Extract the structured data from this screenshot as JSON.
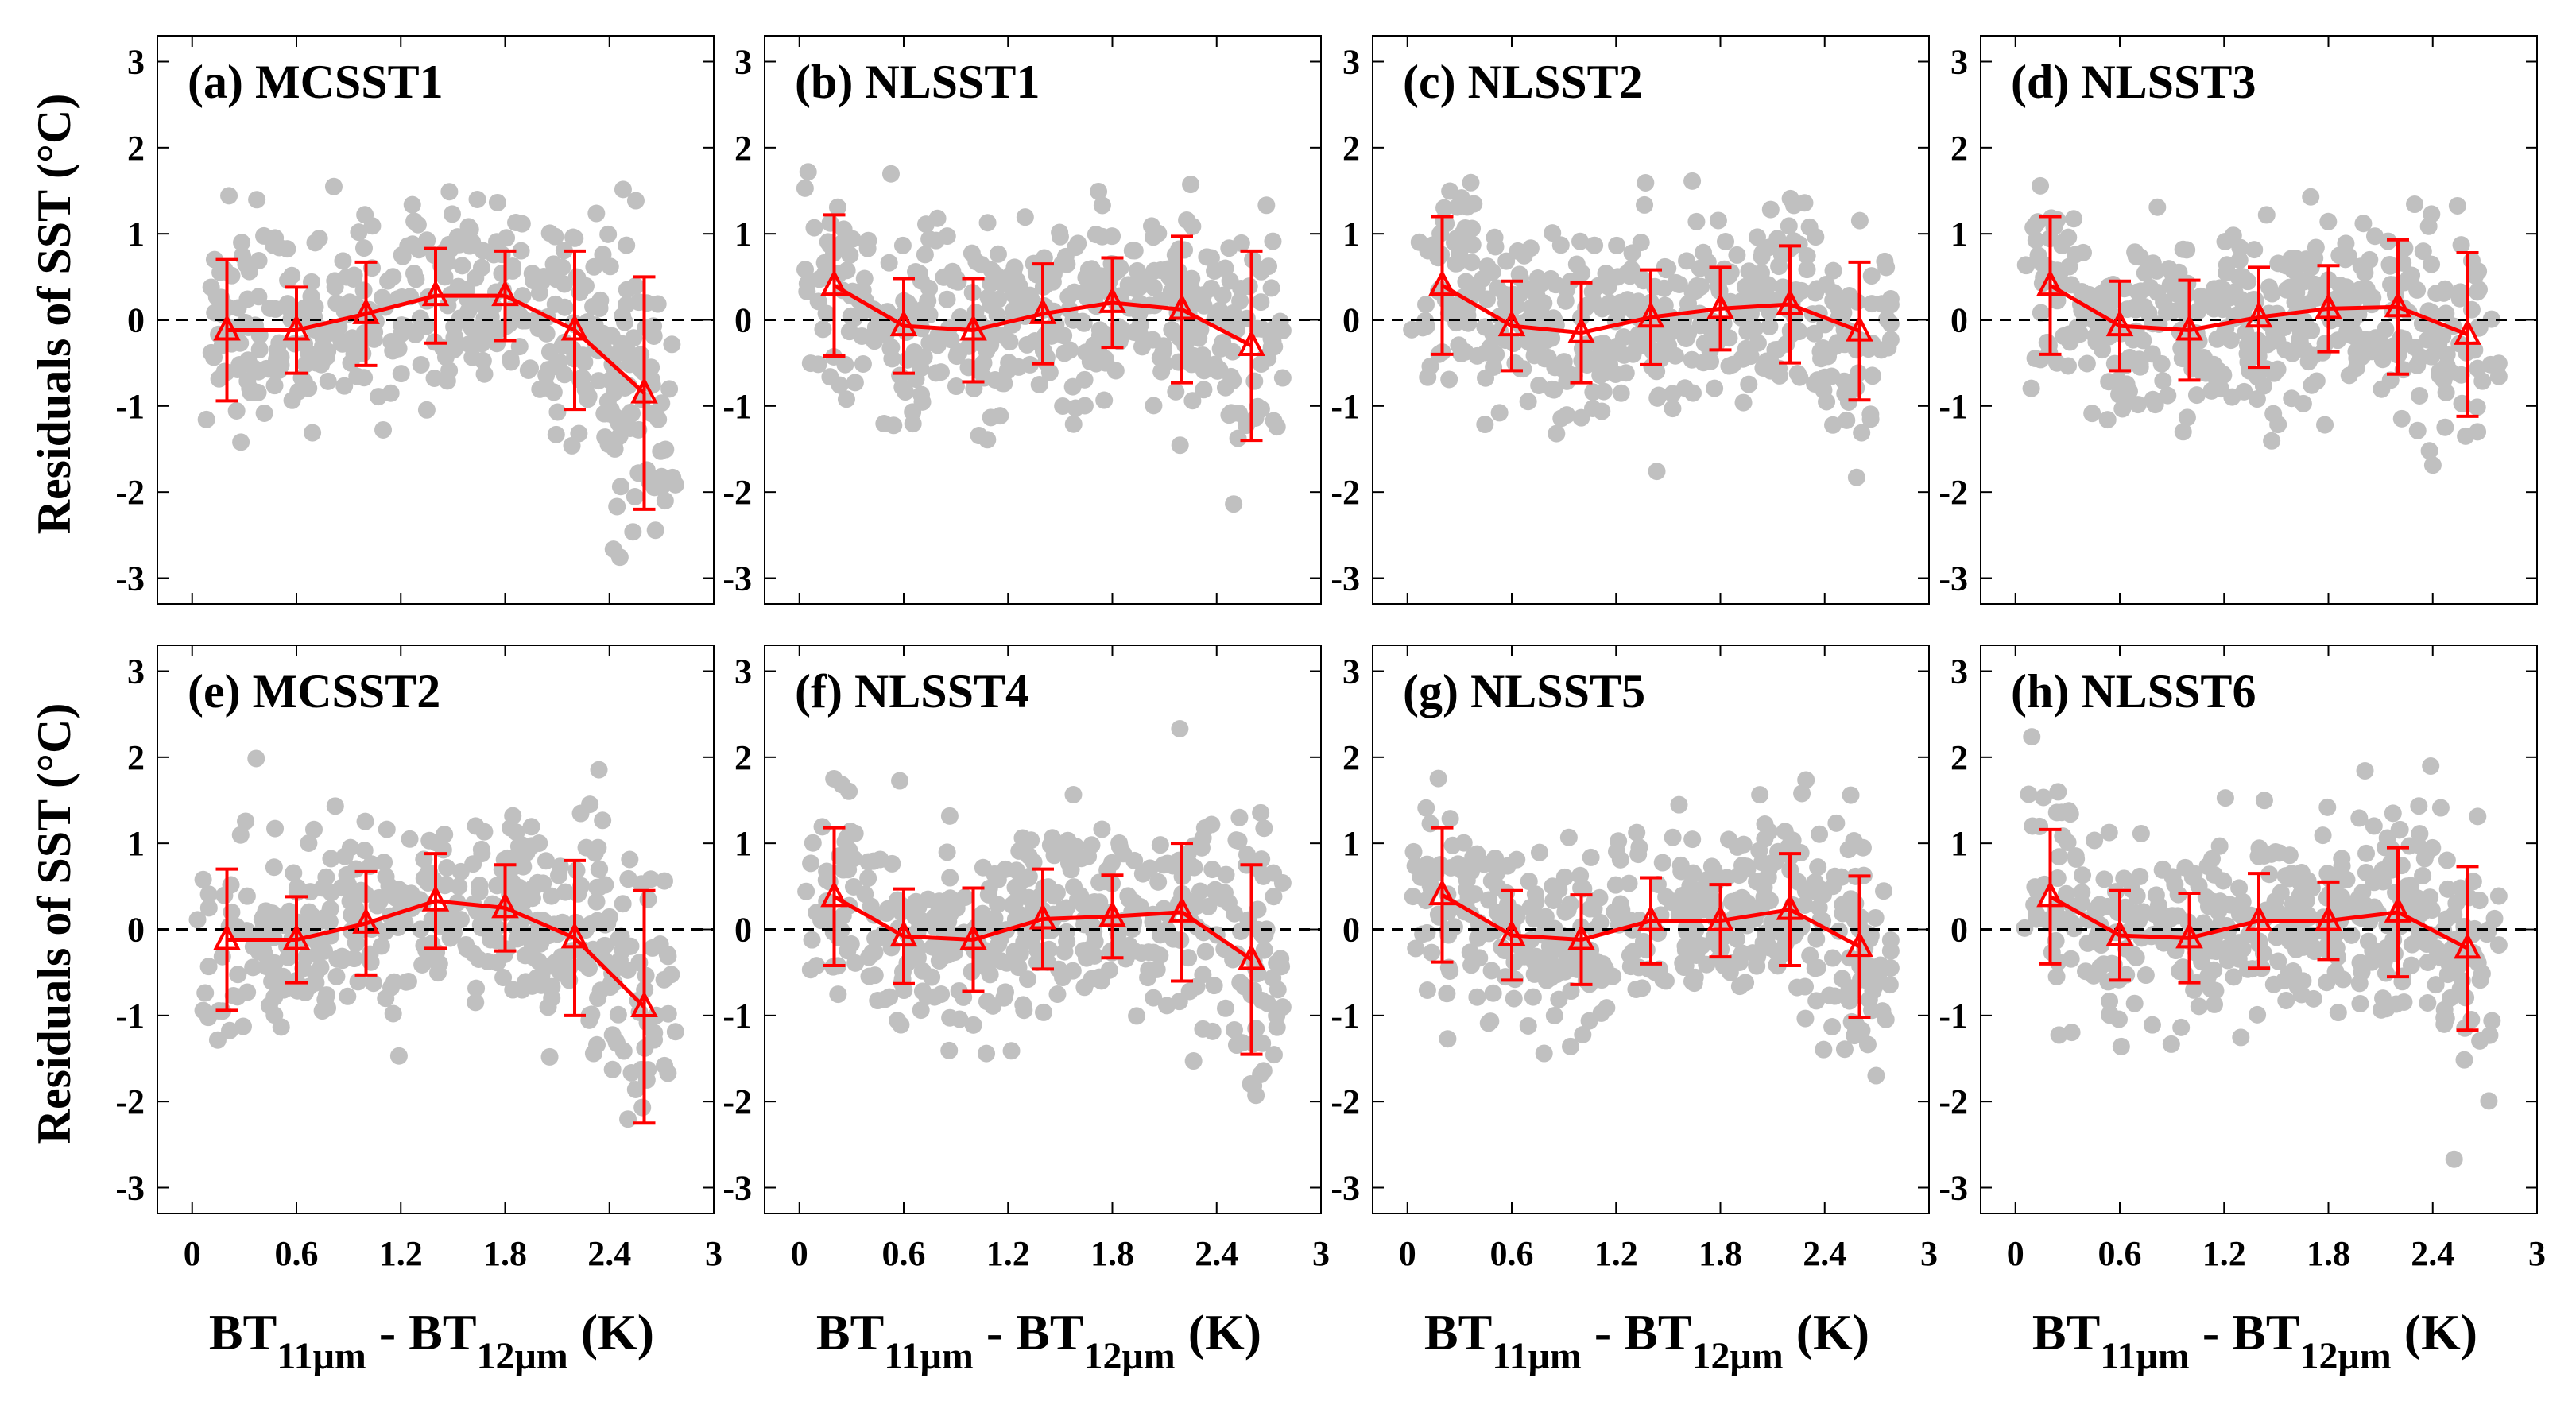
{
  "figure": {
    "ylabel": "Residuals of SST (°C)",
    "xlabel": {
      "t1": "BT",
      "s1": "11μm",
      "t2": " - BT",
      "s2": "12μm",
      "t3": " (K)"
    },
    "colors": {
      "scatter": "#c0c0c0",
      "mean": "#ff0000",
      "zero_line": "#000000"
    }
  },
  "chart_data": [
    {
      "type": "scatter",
      "title": "(a) MCSST1",
      "xlim": [
        -0.2,
        3
      ],
      "ylim": [
        -3.3,
        3.3
      ],
      "xticks": [
        "0",
        "0.6",
        "1.2",
        "1.8",
        "2.4",
        "3"
      ],
      "yticks": [
        "3",
        "2",
        "1",
        "0",
        "-1",
        "-2",
        "-3"
      ],
      "mean_x": [
        0.2,
        0.6,
        1.0,
        1.4,
        1.8,
        2.2,
        2.6
      ],
      "mean_y": [
        -0.12,
        -0.12,
        0.07,
        0.28,
        0.28,
        -0.12,
        -0.85
      ],
      "err": [
        0.82,
        0.5,
        0.6,
        0.55,
        0.52,
        0.92,
        1.35
      ]
    },
    {
      "type": "scatter",
      "title": "(b) NLSST1",
      "xlim": [
        -0.2,
        3
      ],
      "ylim": [
        -3.3,
        3.3
      ],
      "xticks": [
        "0",
        "0.6",
        "1.2",
        "1.8",
        "2.4",
        "3"
      ],
      "yticks": [
        "3",
        "2",
        "1",
        "0",
        "-1",
        "-2",
        "-3"
      ],
      "mean_x": [
        0.2,
        0.6,
        1.0,
        1.4,
        1.8,
        2.2,
        2.6
      ],
      "mean_y": [
        0.4,
        -0.07,
        -0.12,
        0.07,
        0.2,
        0.12,
        -0.3
      ],
      "err": [
        0.82,
        0.55,
        0.6,
        0.58,
        0.52,
        0.85,
        1.1
      ]
    },
    {
      "type": "scatter",
      "title": "(c) NLSST2",
      "xlim": [
        -0.2,
        3
      ],
      "ylim": [
        -3.3,
        3.3
      ],
      "xticks": [
        "0",
        "0.6",
        "1.2",
        "1.8",
        "2.4",
        "3"
      ],
      "yticks": [
        "3",
        "2",
        "1",
        "0",
        "-1",
        "-2",
        "-3"
      ],
      "mean_x": [
        0.2,
        0.6,
        1.0,
        1.4,
        1.8,
        2.2,
        2.6
      ],
      "mean_y": [
        0.4,
        -0.07,
        -0.15,
        0.03,
        0.13,
        0.18,
        -0.13
      ],
      "err": [
        0.8,
        0.52,
        0.58,
        0.55,
        0.48,
        0.68,
        0.8
      ]
    },
    {
      "type": "scatter",
      "title": "(d) NLSST3",
      "xlim": [
        -0.2,
        3
      ],
      "ylim": [
        -3.3,
        3.3
      ],
      "xticks": [
        "0",
        "0.6",
        "1.2",
        "1.8",
        "2.4",
        "3"
      ],
      "yticks": [
        "3",
        "2",
        "1",
        "0",
        "-1",
        "-2",
        "-3"
      ],
      "mean_x": [
        0.2,
        0.6,
        1.0,
        1.4,
        1.8,
        2.2,
        2.6
      ],
      "mean_y": [
        0.4,
        -0.07,
        -0.12,
        0.03,
        0.13,
        0.15,
        -0.17
      ],
      "err": [
        0.8,
        0.52,
        0.58,
        0.58,
        0.5,
        0.78,
        0.95
      ]
    },
    {
      "type": "scatter",
      "title": "(e) MCSST2",
      "xlim": [
        -0.2,
        3
      ],
      "ylim": [
        -3.3,
        3.3
      ],
      "xticks": [
        "0",
        "0.6",
        "1.2",
        "1.8",
        "2.4",
        "3"
      ],
      "yticks": [
        "3",
        "2",
        "1",
        "0",
        "-1",
        "-2",
        "-3"
      ],
      "mean_x": [
        0.2,
        0.6,
        1.0,
        1.4,
        1.8,
        2.2,
        2.6
      ],
      "mean_y": [
        -0.12,
        -0.12,
        0.07,
        0.33,
        0.25,
        -0.1,
        -0.9
      ],
      "err": [
        0.82,
        0.5,
        0.6,
        0.55,
        0.5,
        0.9,
        1.35
      ]
    },
    {
      "type": "scatter",
      "title": "(f) NLSST4",
      "xlim": [
        -0.2,
        3
      ],
      "ylim": [
        -3.3,
        3.3
      ],
      "xticks": [
        "0",
        "0.6",
        "1.2",
        "1.8",
        "2.4",
        "3"
      ],
      "yticks": [
        "3",
        "2",
        "1",
        "0",
        "-1",
        "-2",
        "-3"
      ],
      "mean_x": [
        0.2,
        0.6,
        1.0,
        1.4,
        1.8,
        2.2,
        2.6
      ],
      "mean_y": [
        0.38,
        -0.08,
        -0.12,
        0.12,
        0.15,
        0.2,
        -0.35
      ],
      "err": [
        0.8,
        0.55,
        0.6,
        0.58,
        0.48,
        0.8,
        1.1
      ]
    },
    {
      "type": "scatter",
      "title": "(g) NLSST5",
      "xlim": [
        -0.2,
        3
      ],
      "ylim": [
        -3.3,
        3.3
      ],
      "xticks": [
        "0",
        "0.6",
        "1.2",
        "1.8",
        "2.4",
        "3"
      ],
      "yticks": [
        "3",
        "2",
        "1",
        "0",
        "-1",
        "-2",
        "-3"
      ],
      "mean_x": [
        0.2,
        0.6,
        1.0,
        1.4,
        1.8,
        2.2,
        2.6
      ],
      "mean_y": [
        0.4,
        -0.07,
        -0.12,
        0.1,
        0.1,
        0.23,
        -0.2
      ],
      "err": [
        0.78,
        0.52,
        0.52,
        0.5,
        0.42,
        0.65,
        0.82
      ]
    },
    {
      "type": "scatter",
      "title": "(h) NLSST6",
      "xlim": [
        -0.2,
        3
      ],
      "ylim": [
        -3.3,
        3.3
      ],
      "xticks": [
        "0",
        "0.6",
        "1.2",
        "1.8",
        "2.4",
        "3"
      ],
      "yticks": [
        "3",
        "2",
        "1",
        "0",
        "-1",
        "-2",
        "-3"
      ],
      "mean_x": [
        0.2,
        0.6,
        1.0,
        1.4,
        1.8,
        2.2,
        2.6
      ],
      "mean_y": [
        0.38,
        -0.07,
        -0.1,
        0.1,
        0.1,
        0.2,
        -0.22
      ],
      "err": [
        0.78,
        0.52,
        0.52,
        0.55,
        0.45,
        0.75,
        0.95
      ]
    }
  ]
}
